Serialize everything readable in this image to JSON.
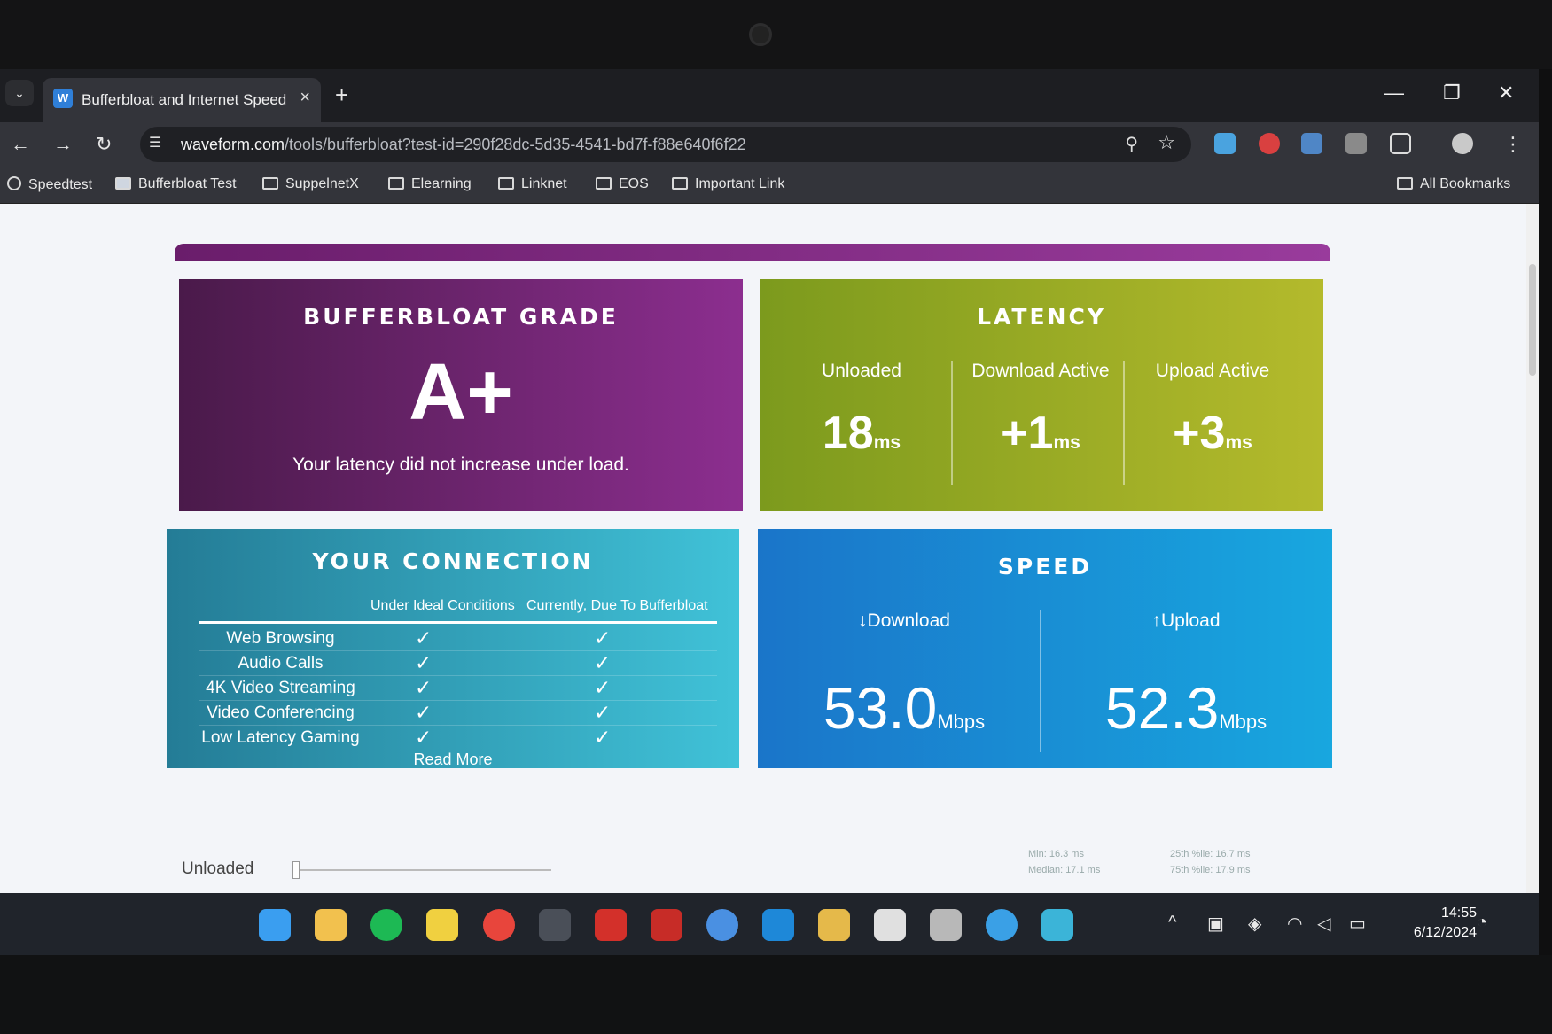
{
  "browser": {
    "tab_title": "Bufferbloat and Internet Speed",
    "url_domain": "waveform.com",
    "url_path": "/tools/bufferbloat?test-id=290f28dc-5d35-4541-bd7f-f88e640f6f22",
    "bookmarks": [
      "Speedtest",
      "Bufferbloat Test",
      "SuppelnetX",
      "Elearning",
      "Linknet",
      "EOS",
      "Important Link"
    ],
    "all_bookmarks": "All Bookmarks"
  },
  "grade": {
    "title": "BUFFERBLOAT GRADE",
    "value": "A+",
    "message": "Your latency did not increase under load."
  },
  "latency": {
    "title": "LATENCY",
    "unit": "ms",
    "columns": [
      {
        "label": "Unloaded",
        "value": "18"
      },
      {
        "label": "Download Active",
        "value": "+1"
      },
      {
        "label": "Upload Active",
        "value": "+3"
      }
    ]
  },
  "connection": {
    "title": "YOUR CONNECTION",
    "head_ideal": "Under Ideal Conditions",
    "head_current": "Currently, Due To Bufferbloat",
    "check": "✓",
    "rows": [
      "Web Browsing",
      "Audio Calls",
      "4K Video Streaming",
      "Video Conferencing",
      "Low Latency Gaming"
    ],
    "read_more": "Read More"
  },
  "speed": {
    "title": "SPEED",
    "unit": "Mbps",
    "download_label": "↓Download",
    "download_value": "53.0",
    "upload_label": "↑Upload",
    "upload_value": "52.3"
  },
  "details": {
    "unloaded_label": "Unloaded",
    "min": "Min: 16.3 ms",
    "median": "Median: 17.1 ms",
    "p25": "25th %ile: 16.7 ms",
    "p75": "75th %ile: 17.9 ms"
  },
  "taskbar": {
    "time": "14:55",
    "date": "6/12/2024"
  }
}
